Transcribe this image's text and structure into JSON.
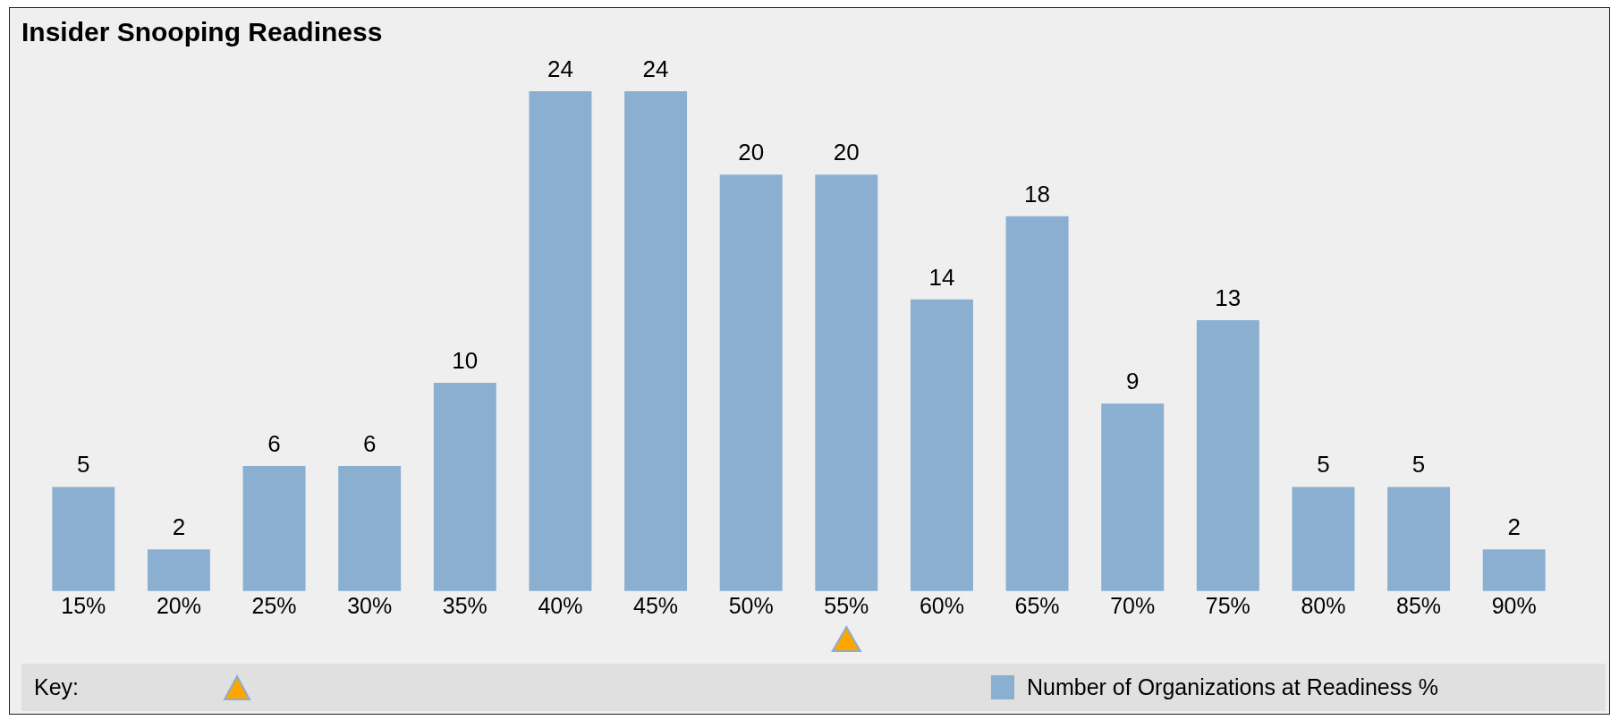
{
  "chart_data": {
    "type": "bar",
    "title": "Insider Snooping Readiness",
    "categories": [
      "15%",
      "20%",
      "25%",
      "30%",
      "35%",
      "40%",
      "45%",
      "50%",
      "55%",
      "60%",
      "65%",
      "70%",
      "75%",
      "80%",
      "85%",
      "90%"
    ],
    "series": [
      {
        "type": "scatter",
        "color": "#ffa500",
        "marker": "triangle",
        "x": [
          "55%"
        ],
        "values": [
          -2.5
        ]
      },
      {
        "name": "Number of Organizations at Readiness %",
        "color": "#8aafd1",
        "values": [
          5,
          2,
          6,
          6,
          10,
          24,
          24,
          20,
          20,
          14,
          18,
          9,
          13,
          5,
          5,
          2
        ],
        "value_labels": [
          "5",
          "2",
          "6",
          "6",
          "10",
          "24",
          "24",
          "20",
          "20",
          "14",
          "18",
          "9",
          "13",
          "5",
          "5",
          "2"
        ]
      }
    ],
    "legend": "bottom",
    "legend_title": "Key:",
    "grid": false
  }
}
